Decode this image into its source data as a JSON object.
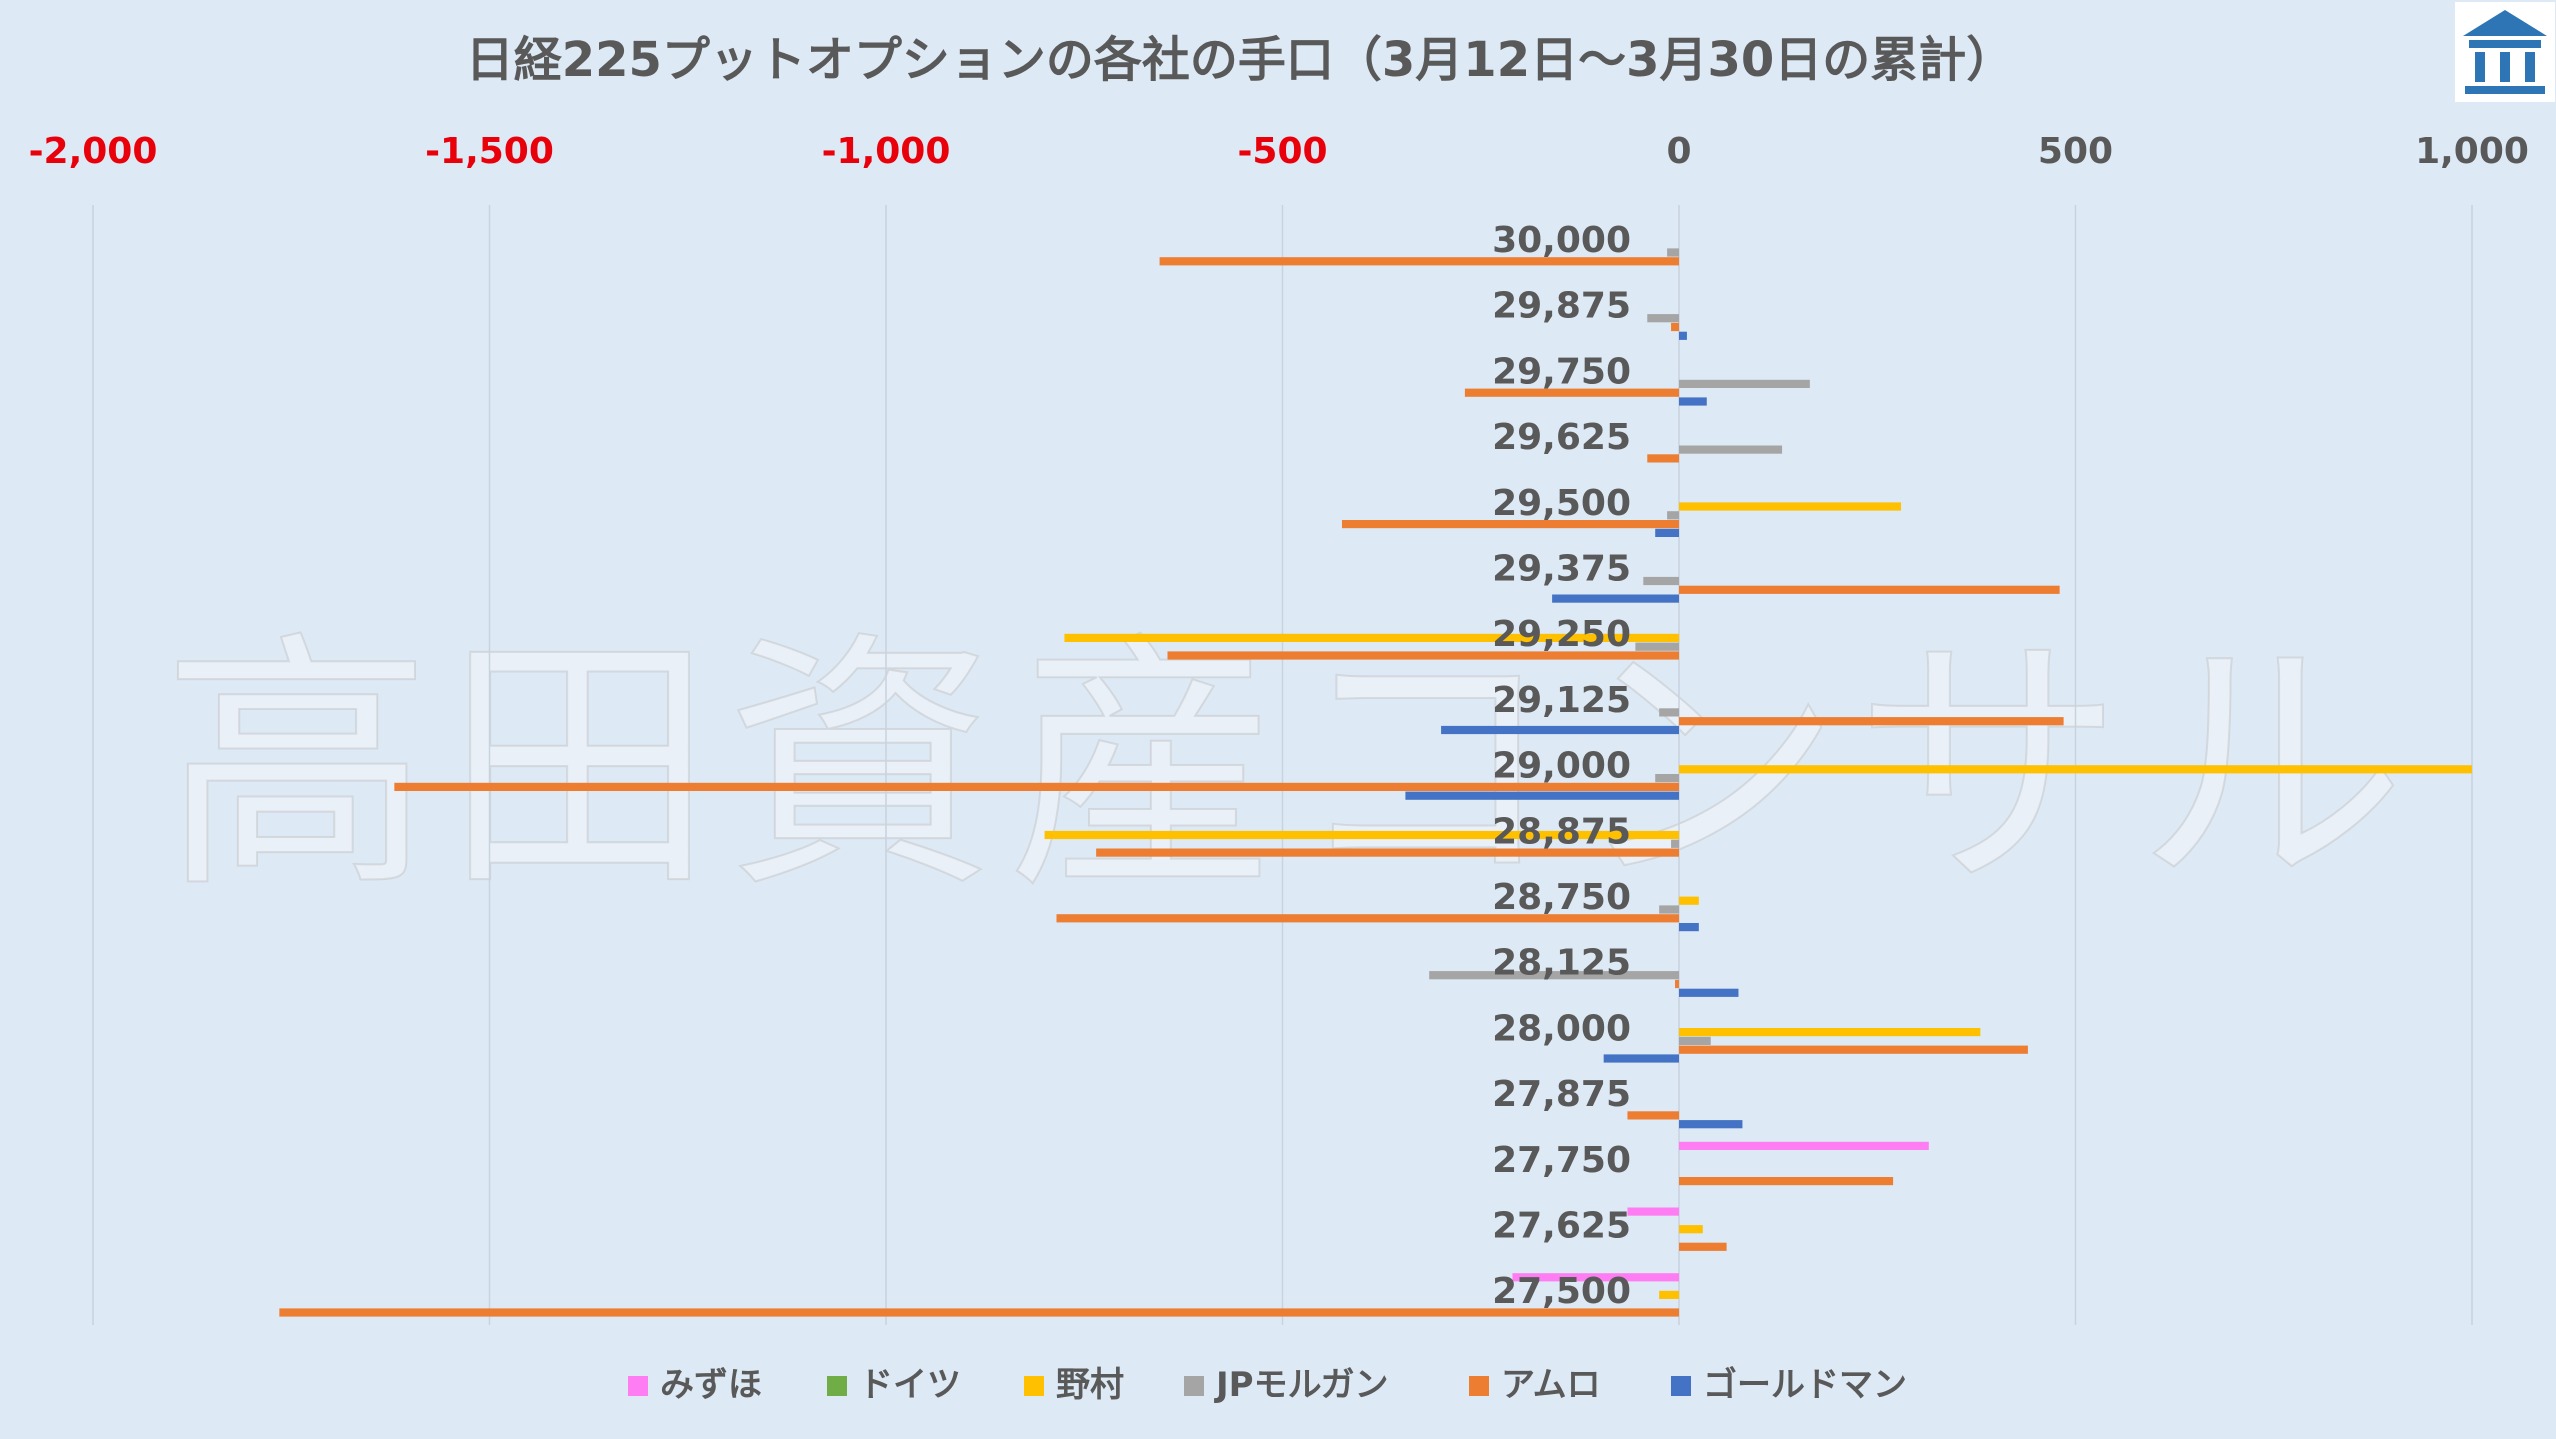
{
  "chart_data": {
    "type": "bar",
    "orientation": "horizontal",
    "title": "日経225プットオプションの各社の手口（3月12日～3月30日の累計）",
    "xlabel": "",
    "ylabel": "",
    "xlim": [
      -2000,
      1000
    ],
    "x_ticks": [
      -2000,
      -1500,
      -1000,
      -500,
      0,
      500,
      1000
    ],
    "x_tick_labels": [
      "-2,000",
      "-1,500",
      "-1,000",
      "-500",
      "0",
      "500",
      "1,000"
    ],
    "negative_tick_color": "#e8000b",
    "positive_tick_color": "#595959",
    "grid": true,
    "legend_position": "bottom",
    "watermark": "高田資産コンサル",
    "categories": [
      "30,000",
      "29,875",
      "29,750",
      "29,625",
      "29,500",
      "29,375",
      "29,250",
      "29,125",
      "29,000",
      "28,875",
      "28,750",
      "28,125",
      "28,000",
      "27,875",
      "27,750",
      "27,625",
      "27,500"
    ],
    "series": [
      {
        "name": "みずほ",
        "color": "#ff7df3",
        "values": [
          0,
          0,
          0,
          0,
          0,
          0,
          0,
          0,
          0,
          0,
          0,
          0,
          0,
          0,
          315,
          -65,
          -210
        ]
      },
      {
        "name": "ドイツ",
        "color": "#70ad47",
        "values": [
          0,
          0,
          0,
          0,
          0,
          0,
          0,
          0,
          0,
          0,
          0,
          0,
          0,
          0,
          0,
          0,
          0
        ]
      },
      {
        "name": "野村",
        "color": "#ffc000",
        "values": [
          0,
          0,
          0,
          0,
          280,
          0,
          -775,
          0,
          1000,
          -800,
          25,
          0,
          380,
          0,
          0,
          30,
          -25
        ]
      },
      {
        "name": "JPモルガン",
        "color": "#a5a5a5",
        "values": [
          -15,
          -40,
          165,
          130,
          -15,
          -45,
          -55,
          -25,
          -30,
          -10,
          -25,
          -315,
          40,
          0,
          0,
          0,
          0
        ]
      },
      {
        "name": "アムロ",
        "color": "#ed7d31",
        "values": [
          -655,
          -10,
          -270,
          -40,
          -425,
          480,
          -645,
          485,
          -1620,
          -735,
          -785,
          -5,
          440,
          -65,
          270,
          60,
          -1765
        ]
      },
      {
        "name": "ゴールドマン",
        "color": "#4472c4",
        "values": [
          0,
          10,
          35,
          0,
          -30,
          -160,
          0,
          -300,
          -345,
          0,
          25,
          75,
          -95,
          80,
          0,
          0,
          0
        ]
      }
    ]
  },
  "logo": {
    "icon": "building-logo-icon",
    "color": "#2e75b6"
  }
}
